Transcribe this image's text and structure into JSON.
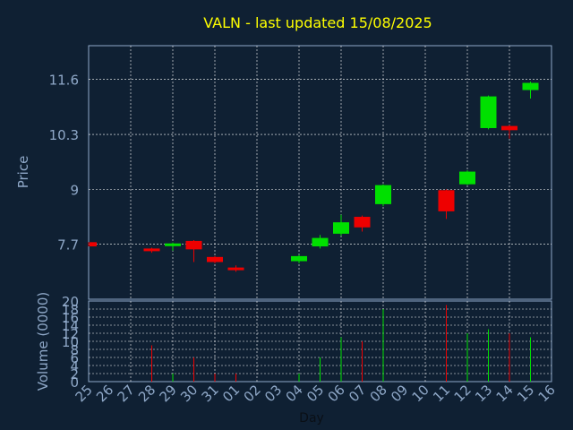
{
  "chart_data": {
    "type": "candlestick",
    "title": "VALN - last updated 15/08/2025",
    "xlabel": "Day",
    "ylabel_price": "Price",
    "ylabel_volume": "Volume (0000)",
    "x_ticks": [
      "25",
      "26",
      "27",
      "28",
      "29",
      "30",
      "31",
      "01",
      "02",
      "03",
      "04",
      "05",
      "06",
      "07",
      "08",
      "09",
      "10",
      "11",
      "12",
      "13",
      "14",
      "15",
      "16"
    ],
    "price_ticks": [
      "7.7",
      "9",
      "10.3",
      "11.6"
    ],
    "price_range": [
      6.4,
      12.4
    ],
    "volume_ticks": [
      "0",
      "2",
      "4",
      "6",
      "8",
      "10",
      "12",
      "14",
      "16",
      "18",
      "20"
    ],
    "volume_range": [
      0,
      20
    ],
    "grid": true,
    "colors": {
      "background": "#0f2033",
      "title": "#ffff00",
      "axis_text": "#8fa8c8",
      "grid": "#ffffff",
      "up": "#00e000",
      "down": "#ee0000"
    },
    "candles": [
      {
        "day": "25",
        "open": 7.75,
        "close": 7.65,
        "high": 7.75,
        "low": 7.65,
        "volume": 0
      },
      {
        "day": "28",
        "open": 7.6,
        "close": 7.55,
        "high": 7.62,
        "low": 7.5,
        "volume": 9
      },
      {
        "day": "29",
        "open": 7.7,
        "close": 7.72,
        "high": 7.74,
        "low": 7.55,
        "volume": 2
      },
      {
        "day": "30",
        "open": 7.78,
        "close": 7.58,
        "high": 7.8,
        "low": 7.28,
        "volume": 6
      },
      {
        "day": "31",
        "open": 7.4,
        "close": 7.28,
        "high": 7.42,
        "low": 7.25,
        "volume": 2
      },
      {
        "day": "01",
        "open": 7.15,
        "close": 7.1,
        "high": 7.2,
        "low": 7.05,
        "volume": 2
      },
      {
        "day": "04",
        "open": 7.3,
        "close": 7.42,
        "high": 7.45,
        "low": 7.25,
        "volume": 2
      },
      {
        "day": "05",
        "open": 7.65,
        "close": 7.85,
        "high": 7.92,
        "low": 7.6,
        "volume": 6
      },
      {
        "day": "06",
        "open": 7.95,
        "close": 8.22,
        "high": 8.4,
        "low": 7.9,
        "volume": 11
      },
      {
        "day": "07",
        "open": 8.35,
        "close": 8.1,
        "high": 8.38,
        "low": 8.0,
        "volume": 10
      },
      {
        "day": "08",
        "open": 8.65,
        "close": 9.1,
        "high": 9.12,
        "low": 8.6,
        "volume": 18
      },
      {
        "day": "11",
        "open": 8.98,
        "close": 8.48,
        "high": 9.0,
        "low": 8.3,
        "volume": 19
      },
      {
        "day": "12",
        "open": 9.12,
        "close": 9.42,
        "high": 9.45,
        "low": 9.1,
        "volume": 12
      },
      {
        "day": "13",
        "open": 10.45,
        "close": 11.2,
        "high": 11.22,
        "low": 10.42,
        "volume": 13
      },
      {
        "day": "14",
        "open": 10.5,
        "close": 10.4,
        "high": 10.52,
        "low": 10.2,
        "volume": 12
      },
      {
        "day": "15",
        "open": 11.35,
        "close": 11.52,
        "high": 11.55,
        "low": 11.15,
        "volume": 11
      }
    ]
  }
}
